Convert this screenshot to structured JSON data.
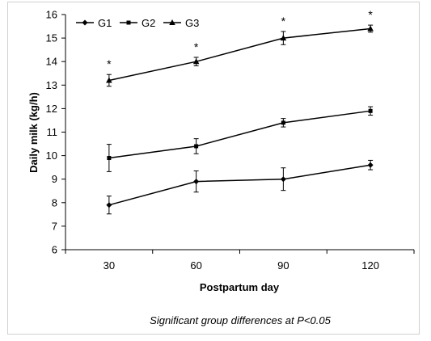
{
  "chart_data": {
    "type": "line",
    "title": "",
    "xlabel": "Postpartum day",
    "ylabel": "Daily milk (kg/h)",
    "categories": [
      "30",
      "60",
      "90",
      "120"
    ],
    "x": [
      30,
      60,
      90,
      120
    ],
    "ylim": [
      6,
      16
    ],
    "yticks": [
      "6",
      "7",
      "8",
      "9",
      "10",
      "11",
      "12",
      "13",
      "14",
      "15",
      "16"
    ],
    "grid": false,
    "legend_position": "top-left",
    "series": [
      {
        "name": "G1",
        "marker": "diamond",
        "values": [
          7.9,
          8.9,
          9.0,
          9.6
        ],
        "errors": [
          0.38,
          0.45,
          0.48,
          0.2
        ]
      },
      {
        "name": "G2",
        "marker": "square",
        "values": [
          9.9,
          10.4,
          11.4,
          11.9
        ],
        "errors": [
          0.58,
          0.32,
          0.18,
          0.18
        ]
      },
      {
        "name": "G3",
        "marker": "triangle",
        "values": [
          13.2,
          14.0,
          15.0,
          15.4
        ],
        "errors": [
          0.25,
          0.18,
          0.28,
          0.15
        ]
      }
    ],
    "annotations": [
      "*",
      "*",
      "*",
      "*"
    ],
    "note": "Significant group differences  at P<0.05",
    "line_color": "#000000"
  }
}
